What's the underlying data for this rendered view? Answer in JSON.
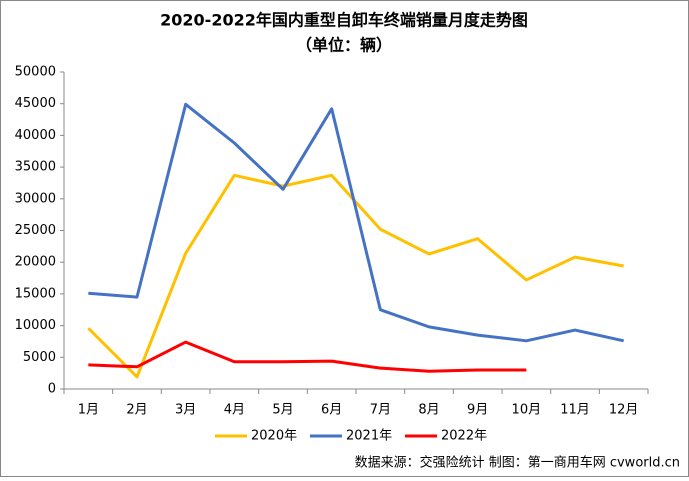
{
  "chart_data": {
    "type": "line",
    "title": "2020-2022年国内重型自卸车终端销量月度走势图",
    "subtitle": "（单位：辆）",
    "source": "数据来源：交强险统计  制图：第一商用车网 cvworld.cn",
    "categories": [
      "1月",
      "2月",
      "3月",
      "4月",
      "5月",
      "6月",
      "7月",
      "8月",
      "9月",
      "10月",
      "11月",
      "12月"
    ],
    "series": [
      {
        "name": "2020年",
        "color": "#ffc000",
        "values": [
          9600,
          1900,
          21400,
          33700,
          32000,
          33700,
          25200,
          21300,
          23700,
          17200,
          20800,
          19400
        ]
      },
      {
        "name": "2021年",
        "color": "#4472c4",
        "values": [
          15100,
          14500,
          44900,
          38800,
          31500,
          44200,
          12500,
          9800,
          8500,
          7600,
          9300,
          7600
        ]
      },
      {
        "name": "2022年",
        "color": "#ff0000",
        "values": [
          3800,
          3500,
          7400,
          4300,
          4300,
          4400,
          3300,
          2800,
          3000,
          3000,
          null,
          null
        ]
      }
    ],
    "ylim": [
      0,
      50000
    ],
    "yticks": [
      0,
      5000,
      10000,
      15000,
      20000,
      25000,
      30000,
      35000,
      40000,
      45000,
      50000
    ],
    "grid": false,
    "legend": "bottom"
  }
}
